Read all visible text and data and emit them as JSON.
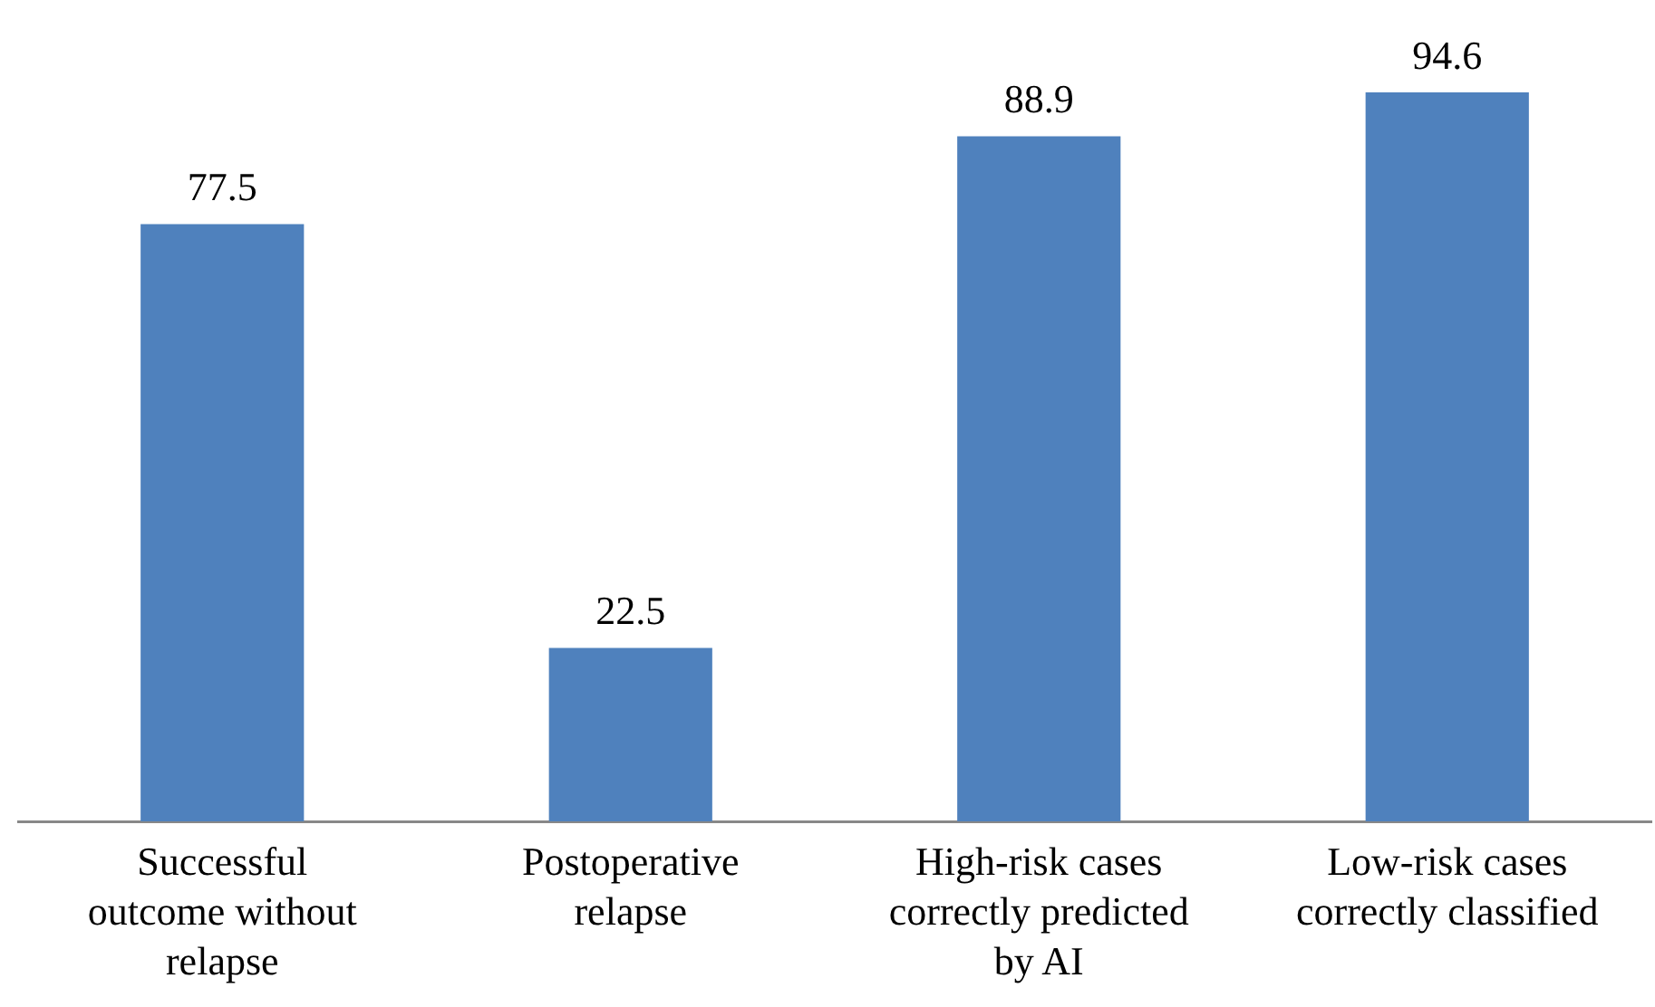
{
  "chart_data": {
    "type": "bar",
    "categories": [
      "Successful\noutcome without\nrelapse",
      "Postoperative\nrelapse",
      "High-risk cases\ncorrectly predicted\nby AI",
      "Low-risk cases\ncorrectly classified"
    ],
    "values": [
      77.5,
      22.5,
      88.9,
      94.6
    ],
    "color": "#4f81bd",
    "tick_labels": "x",
    "data_labels": true,
    "grid": false,
    "legend": false
  }
}
